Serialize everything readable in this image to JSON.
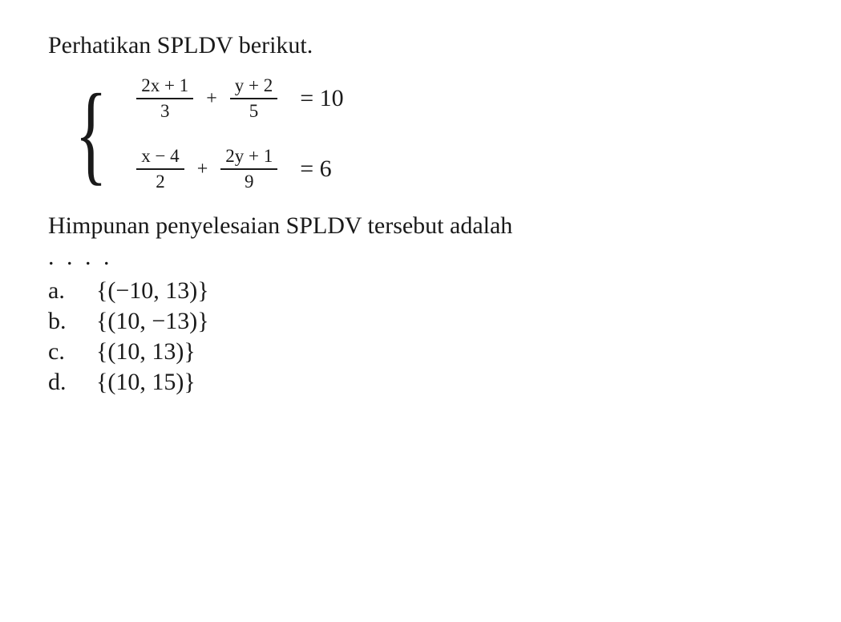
{
  "intro_text": "Perhatikan SPLDV berikut.",
  "colors": {
    "text": "#1a1a1a",
    "background": "#ffffff",
    "fraction_line": "#1a1a1a"
  },
  "typography": {
    "intro_fontsize": 30,
    "equation_fontsize": 26,
    "fraction_fontsize": 23,
    "result_fontsize": 30,
    "option_fontsize": 30,
    "font_family": "Georgia, Times New Roman, serif"
  },
  "equations": [
    {
      "frac1_num": "2x + 1",
      "frac1_den": "3",
      "operator": "+",
      "frac2_num": "y + 2",
      "frac2_den": "5",
      "equals": "=",
      "result": "10"
    },
    {
      "frac1_num": "x − 4",
      "frac1_den": "2",
      "operator": "+",
      "frac2_num": "2y + 1",
      "frac2_den": "9",
      "equals": "=",
      "result": "6"
    }
  ],
  "question_text": "Himpunan penyelesaian SPLDV tersebut adalah",
  "dots": ". . . .",
  "options": [
    {
      "letter": "a.",
      "text": "{(−10, 13)}"
    },
    {
      "letter": "b.",
      "text": "{(10, −13)}"
    },
    {
      "letter": "c.",
      "text": "{(10, 13)}"
    },
    {
      "letter": "d.",
      "text": "{(10, 15)}"
    }
  ]
}
